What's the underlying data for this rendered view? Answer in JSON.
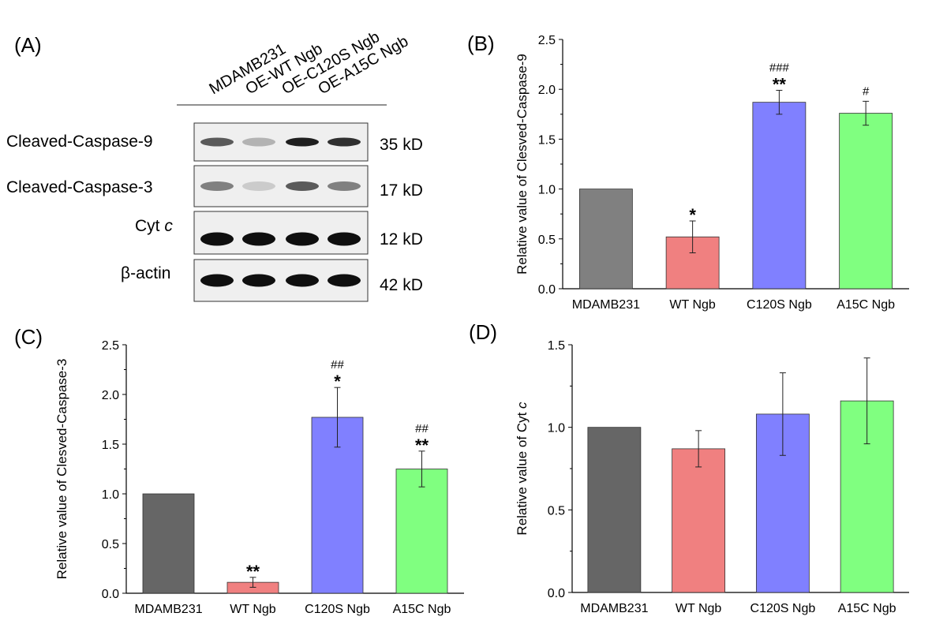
{
  "panels": {
    "A": "(A)",
    "B": "(B)",
    "C": "(C)",
    "D": "(D)"
  },
  "blot": {
    "lanes": [
      "MDAMB231",
      "OE-WT Ngb",
      "OE-C120S Ngb",
      "OE-A15C Ngb"
    ],
    "rows": [
      {
        "label": "Cleaved-Caspase-9",
        "kd": "35 kD",
        "intensity": [
          0.75,
          0.35,
          0.95,
          0.9
        ]
      },
      {
        "label": "Cleaved-Caspase-3",
        "kd": "17 kD",
        "intensity": [
          0.6,
          0.2,
          0.75,
          0.6
        ]
      },
      {
        "label": "Cyt c",
        "label_main": "Cyt ",
        "label_italic": "c",
        "kd": "12 kD",
        "intensity": [
          1.0,
          1.0,
          1.0,
          1.0
        ]
      },
      {
        "label": "β-actin",
        "kd": "42 kD",
        "intensity": [
          1.0,
          1.0,
          1.0,
          1.0
        ]
      }
    ]
  },
  "chart_data": [
    {
      "panel": "B",
      "type": "bar",
      "categories": [
        "MDAMB231",
        "WT Ngb",
        "C120S Ngb",
        "A15C Ngb"
      ],
      "values": [
        1.0,
        0.52,
        1.87,
        1.76
      ],
      "errors": [
        0.0,
        0.16,
        0.12,
        0.12
      ],
      "ylabel": "Relative value of Clesved-Caspase-9",
      "ylim": [
        0,
        2.5
      ],
      "yticks": [
        "0.0",
        "0.5",
        "1.0",
        "1.5",
        "2.0",
        "2.5"
      ],
      "annotations": [
        {
          "category": "WT Ngb",
          "lines": [
            "*"
          ]
        },
        {
          "category": "C120S Ngb",
          "lines": [
            "###",
            "**"
          ]
        },
        {
          "category": "A15C Ngb",
          "lines": [
            "#"
          ]
        }
      ],
      "colors": [
        "#808080",
        "#f08080",
        "#8080ff",
        "#80ff80"
      ]
    },
    {
      "panel": "C",
      "type": "bar",
      "categories": [
        "MDAMB231",
        "WT Ngb",
        "C120S Ngb",
        "A15C Ngb"
      ],
      "values": [
        1.0,
        0.11,
        1.77,
        1.25
      ],
      "errors": [
        0.0,
        0.05,
        0.3,
        0.18
      ],
      "ylabel": "Relative value of Clesved-Caspase-3",
      "ylim": [
        0,
        2.5
      ],
      "yticks": [
        "0.0",
        "0.5",
        "1.0",
        "1.5",
        "2.0",
        "2.5"
      ],
      "annotations": [
        {
          "category": "WT Ngb",
          "lines": [
            "**"
          ]
        },
        {
          "category": "C120S Ngb",
          "lines": [
            "##",
            "*"
          ]
        },
        {
          "category": "A15C Ngb",
          "lines": [
            "##",
            "**"
          ]
        }
      ],
      "colors": [
        "#666666",
        "#f08080",
        "#8080ff",
        "#80ff80"
      ]
    },
    {
      "panel": "D",
      "type": "bar",
      "categories": [
        "MDAMB231",
        "WT Ngb",
        "C120S Ngb",
        "A15C Ngb"
      ],
      "values": [
        1.0,
        0.87,
        1.08,
        1.16
      ],
      "errors": [
        0.0,
        0.11,
        0.25,
        0.26
      ],
      "ylabel": "Relative value of Cyt ",
      "ylabel_italic": "c",
      "ylim": [
        0,
        1.5
      ],
      "yticks": [
        "0.0",
        "0.5",
        "1.0",
        "1.5"
      ],
      "annotations": [],
      "colors": [
        "#666666",
        "#f08080",
        "#8080ff",
        "#80ff80"
      ]
    }
  ]
}
